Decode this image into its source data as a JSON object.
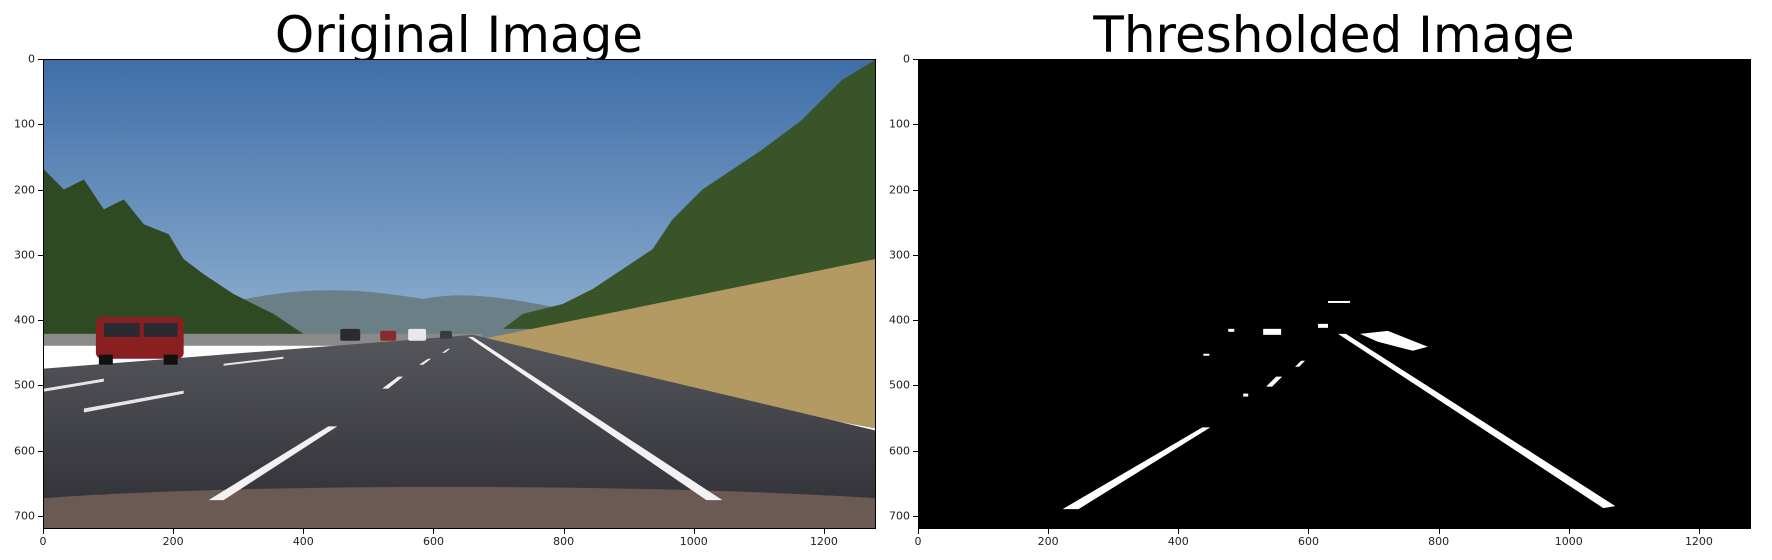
{
  "panels": [
    {
      "id": "original",
      "title": "Original Image",
      "content": "road-photo",
      "x_ticks": [
        "0",
        "200",
        "400",
        "600",
        "800",
        "1000",
        "1200"
      ],
      "y_ticks": [
        "0",
        "100",
        "200",
        "300",
        "400",
        "500",
        "600",
        "700"
      ]
    },
    {
      "id": "thresholded",
      "title": "Thresholded Image",
      "content": "binary-lane-mask",
      "x_ticks": [
        "0",
        "200",
        "400",
        "600",
        "800",
        "1000",
        "1200"
      ],
      "y_ticks": [
        "0",
        "100",
        "200",
        "300",
        "400",
        "500",
        "600",
        "700"
      ]
    }
  ],
  "image_extent": {
    "width": 1280,
    "height": 720
  },
  "colors": {
    "sky": "#4a7bb5",
    "road": "#3a3b40",
    "grass": "#b39a63",
    "trees": "#2f4a22",
    "mask_bg": "#000000",
    "mask_fg": "#ffffff"
  }
}
